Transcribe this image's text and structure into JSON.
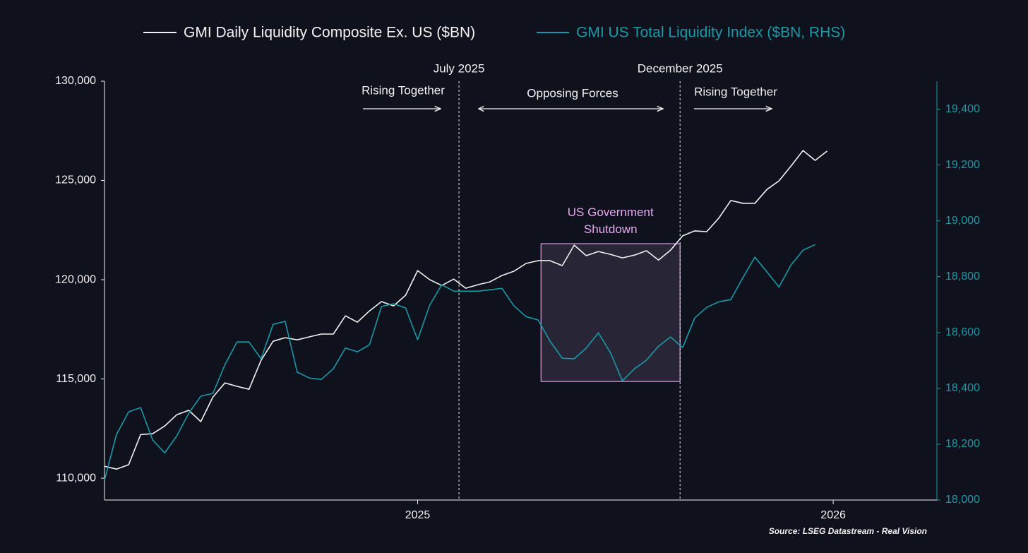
{
  "chart_data": {
    "type": "line",
    "x": [
      2025,
      2025.0192,
      2025.0385,
      2025.0577,
      2025.0769,
      2025.0962,
      2025.1154,
      2025.1346,
      2025.1538,
      2025.1731,
      2025.1923,
      2025.2115,
      2025.2308,
      2025.25,
      2025.2692,
      2025.2885,
      2025.3077,
      2025.3269,
      2025.3462,
      2025.3654,
      2025.3846,
      2025.4038,
      2025.4231,
      2025.4423,
      2025.4615,
      2025.4808,
      2025.5,
      2025.5192,
      2025.5385,
      2025.5577,
      2025.5769,
      2025.5962,
      2025.6154,
      2025.6346,
      2025.6538,
      2025.6731,
      2025.6923,
      2025.7115,
      2025.7308,
      2025.75,
      2025.7692,
      2025.7885,
      2025.8077,
      2025.8269,
      2025.8462,
      2025.8654,
      2025.8846,
      2025.9038,
      2025.9231,
      2025.9423,
      2025.9615,
      2025.9808,
      2026,
      2026.0192,
      2026.0385,
      2026.0577,
      2026.0769,
      2026.0962,
      2026.1154,
      2026.1346,
      2026.1538
    ],
    "series": [
      {
        "name": "GMI Daily Liquidity Composite Ex. US ($BN)",
        "color": "#f2f2f2",
        "values": [
          110600,
          110460,
          110680,
          112200,
          112240,
          112630,
          113200,
          113420,
          112850,
          114090,
          114800,
          114630,
          114480,
          115940,
          116900,
          117080,
          116970,
          117120,
          117260,
          117260,
          118180,
          117860,
          118430,
          118900,
          118680,
          119220,
          120460,
          120000,
          119710,
          120030,
          119570,
          119750,
          119890,
          120210,
          120430,
          120820,
          120960,
          120960,
          120710,
          121740,
          121210,
          121420,
          121280,
          121100,
          121240,
          121460,
          120990,
          121490,
          122210,
          122460,
          122420,
          123100,
          123990,
          123850,
          123850,
          124550,
          124980,
          125730,
          126510,
          126010,
          126480
        ]
      },
      {
        "name": "GMI US Total Liquidity Index ($BN, RHS)",
        "color": "#1a9aa8",
        "axis": "y2",
        "values": [
          18071,
          18235,
          18316,
          18331,
          18215,
          18169,
          18230,
          18311,
          18372,
          18382,
          18485,
          18566,
          18566,
          18506,
          18629,
          18640,
          18458,
          18437,
          18432,
          18470,
          18544,
          18531,
          18556,
          18693,
          18703,
          18688,
          18574,
          18698,
          18771,
          18748,
          18748,
          18748,
          18753,
          18758,
          18695,
          18657,
          18645,
          18569,
          18508,
          18506,
          18544,
          18599,
          18528,
          18427,
          18470,
          18501,
          18551,
          18584,
          18546,
          18652,
          18690,
          18710,
          18718,
          18796,
          18870,
          18817,
          18763,
          18842,
          18895,
          18915,
          null
        ]
      }
    ],
    "xlim": [
      2025,
      2026.3291
    ],
    "xticks": [
      {
        "value": 2025.5,
        "label": "2025"
      },
      {
        "value": 2026.1635,
        "label": "2026"
      }
    ],
    "ylim": [
      108900,
      130000
    ],
    "yticks": [
      {
        "value": 110000,
        "label": "110,000"
      },
      {
        "value": 115000,
        "label": "115,000"
      },
      {
        "value": 120000,
        "label": "120,000"
      },
      {
        "value": 125000,
        "label": "125,000"
      },
      {
        "value": 130000,
        "label": "130,000"
      }
    ],
    "y2lim": [
      18000,
      19500
    ],
    "y2ticks": [
      {
        "value": 18000,
        "label": "18,000"
      },
      {
        "value": 18200,
        "label": "18,200"
      },
      {
        "value": 18400,
        "label": "18,400"
      },
      {
        "value": 18600,
        "label": "18,600"
      },
      {
        "value": 18800,
        "label": "18,800"
      },
      {
        "value": 19000,
        "label": "19,000"
      },
      {
        "value": 19200,
        "label": "19,200"
      },
      {
        "value": 19400,
        "label": "19,400"
      }
    ],
    "vlines": [
      {
        "x": 2025.566,
        "label": "July 2025"
      },
      {
        "x": 2025.919,
        "label": "December 2025"
      }
    ],
    "annotations": [
      "Rising Together",
      "Opposing Forces",
      "Rising Together"
    ],
    "shade": {
      "label": "US Government Shutdown",
      "x": [
        2025.697,
        2025.919
      ],
      "y": [
        114874,
        121814
      ]
    },
    "source": "Source: LSEG Datastream - Real Vision"
  }
}
